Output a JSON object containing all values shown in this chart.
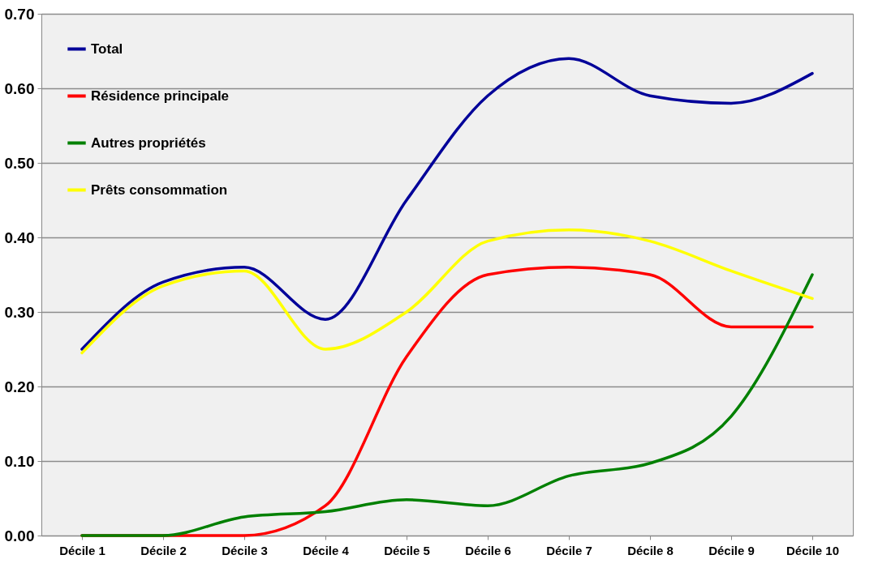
{
  "chart_data": {
    "type": "line",
    "categories": [
      "Décile 1",
      "Décile 2",
      "Décile 3",
      "Décile 4",
      "Décile 5",
      "Décile 6",
      "Décile 7",
      "Décile 8",
      "Décile 9",
      "Décile 10"
    ],
    "series": [
      {
        "name": "Total",
        "color": "#000099",
        "values": [
          0.25,
          0.34,
          0.36,
          0.29,
          0.45,
          0.59,
          0.64,
          0.59,
          0.58,
          0.62
        ]
      },
      {
        "name": "Résidence principale",
        "color": "#ff0000",
        "values": [
          0,
          0,
          0,
          0.04,
          0.24,
          0.35,
          0.36,
          0.35,
          0.28,
          0.28
        ]
      },
      {
        "name": "Autres propriétés",
        "color": "#008000",
        "values": [
          0,
          0,
          0.025,
          0.032,
          0.048,
          0.04,
          0.08,
          0.097,
          0.16,
          0.35
        ]
      },
      {
        "name": "Prêts consommation",
        "color": "#ffff00",
        "values": [
          0.245,
          0.335,
          0.355,
          0.25,
          0.3,
          0.395,
          0.41,
          0.395,
          0.355,
          0.318
        ]
      }
    ],
    "ylim": [
      0,
      0.7
    ],
    "yticks": [
      {
        "value": 0,
        "label": "0.00"
      },
      {
        "value": 0.1,
        "label": "0.10"
      },
      {
        "value": 0.2,
        "label": "0.20"
      },
      {
        "value": 0.3,
        "label": "0.30"
      },
      {
        "value": 0.4,
        "label": "0.40"
      },
      {
        "value": 0.5,
        "label": "0.50"
      },
      {
        "value": 0.6,
        "label": "0.60"
      },
      {
        "value": 0.7,
        "label": "0.70"
      }
    ],
    "grid": "y",
    "legend": "top left",
    "marker": "none",
    "line_style": "solid"
  }
}
